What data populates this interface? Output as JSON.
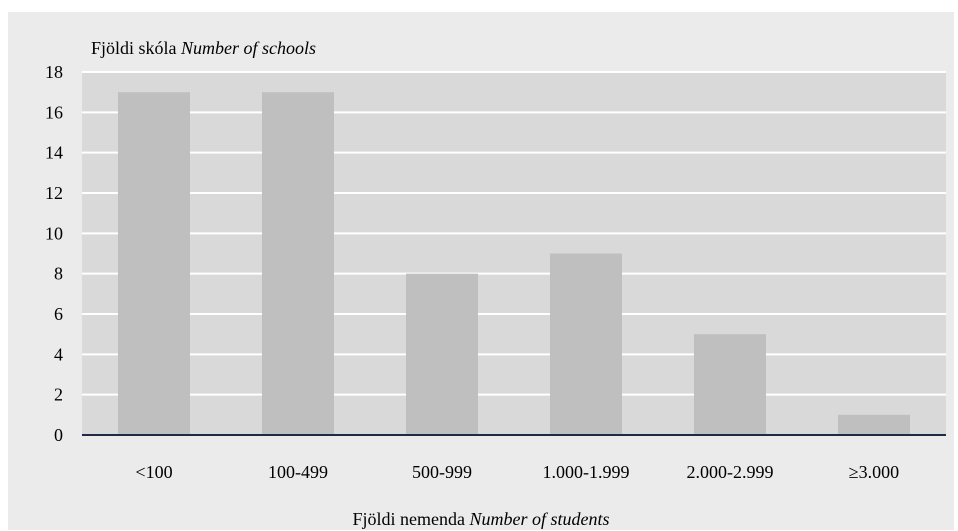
{
  "chart_data": {
    "type": "bar",
    "categories": [
      "<100",
      "100-499",
      "500-999",
      "1.000-1.999",
      "2.000-2.999",
      "≥3.000"
    ],
    "values": [
      17,
      17,
      8,
      9,
      5,
      1
    ],
    "ylabel": {
      "main": "Fjöldi skóla",
      "italic": "Number of schools"
    },
    "xlabel": {
      "main": "Fjöldi nemenda",
      "italic": "Number of students"
    },
    "ylim": [
      0,
      18
    ],
    "yticks": [
      0,
      2,
      4,
      6,
      8,
      10,
      12,
      14,
      16,
      18
    ],
    "grid": true,
    "colors": {
      "background": "#ebebeb",
      "plot_area": "#d9d9d9",
      "bars": "#bfbfbf",
      "gridlines": "#ffffff",
      "axis": "#1f2a44"
    }
  }
}
